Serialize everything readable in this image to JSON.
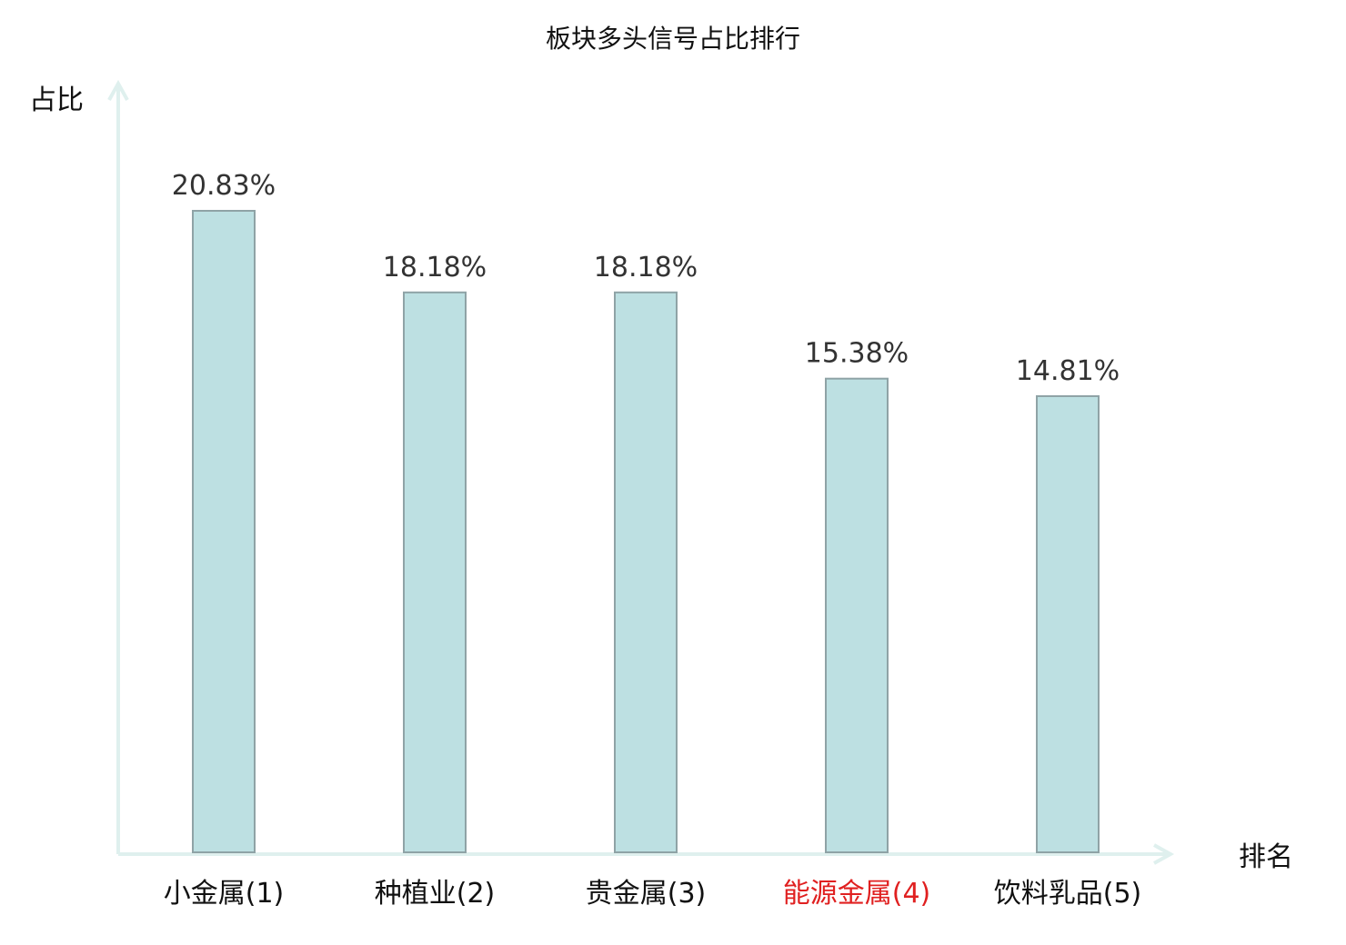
{
  "chart_data": {
    "type": "bar",
    "title": "板块多头信号占比排行",
    "ylabel": "占比",
    "xlabel": "排名",
    "ylim": [
      0,
      25
    ],
    "grid": false,
    "categories": [
      "小金属(1)",
      "种植业(2)",
      "贵金属(3)",
      "能源金属(4)",
      "饮料乳品(5)"
    ],
    "values": [
      20.83,
      18.18,
      18.18,
      15.38,
      14.81
    ],
    "value_labels": [
      "20.83%",
      "18.18%",
      "18.18%",
      "15.38%",
      "14.81%"
    ],
    "highlight_index": 3,
    "colors": {
      "bar_fill": "#bde0e2",
      "bar_stroke": "#8fa3a6",
      "axis": "#dff0ee",
      "label": "#111111",
      "value_label": "#333333",
      "highlight": "#e02020"
    }
  }
}
